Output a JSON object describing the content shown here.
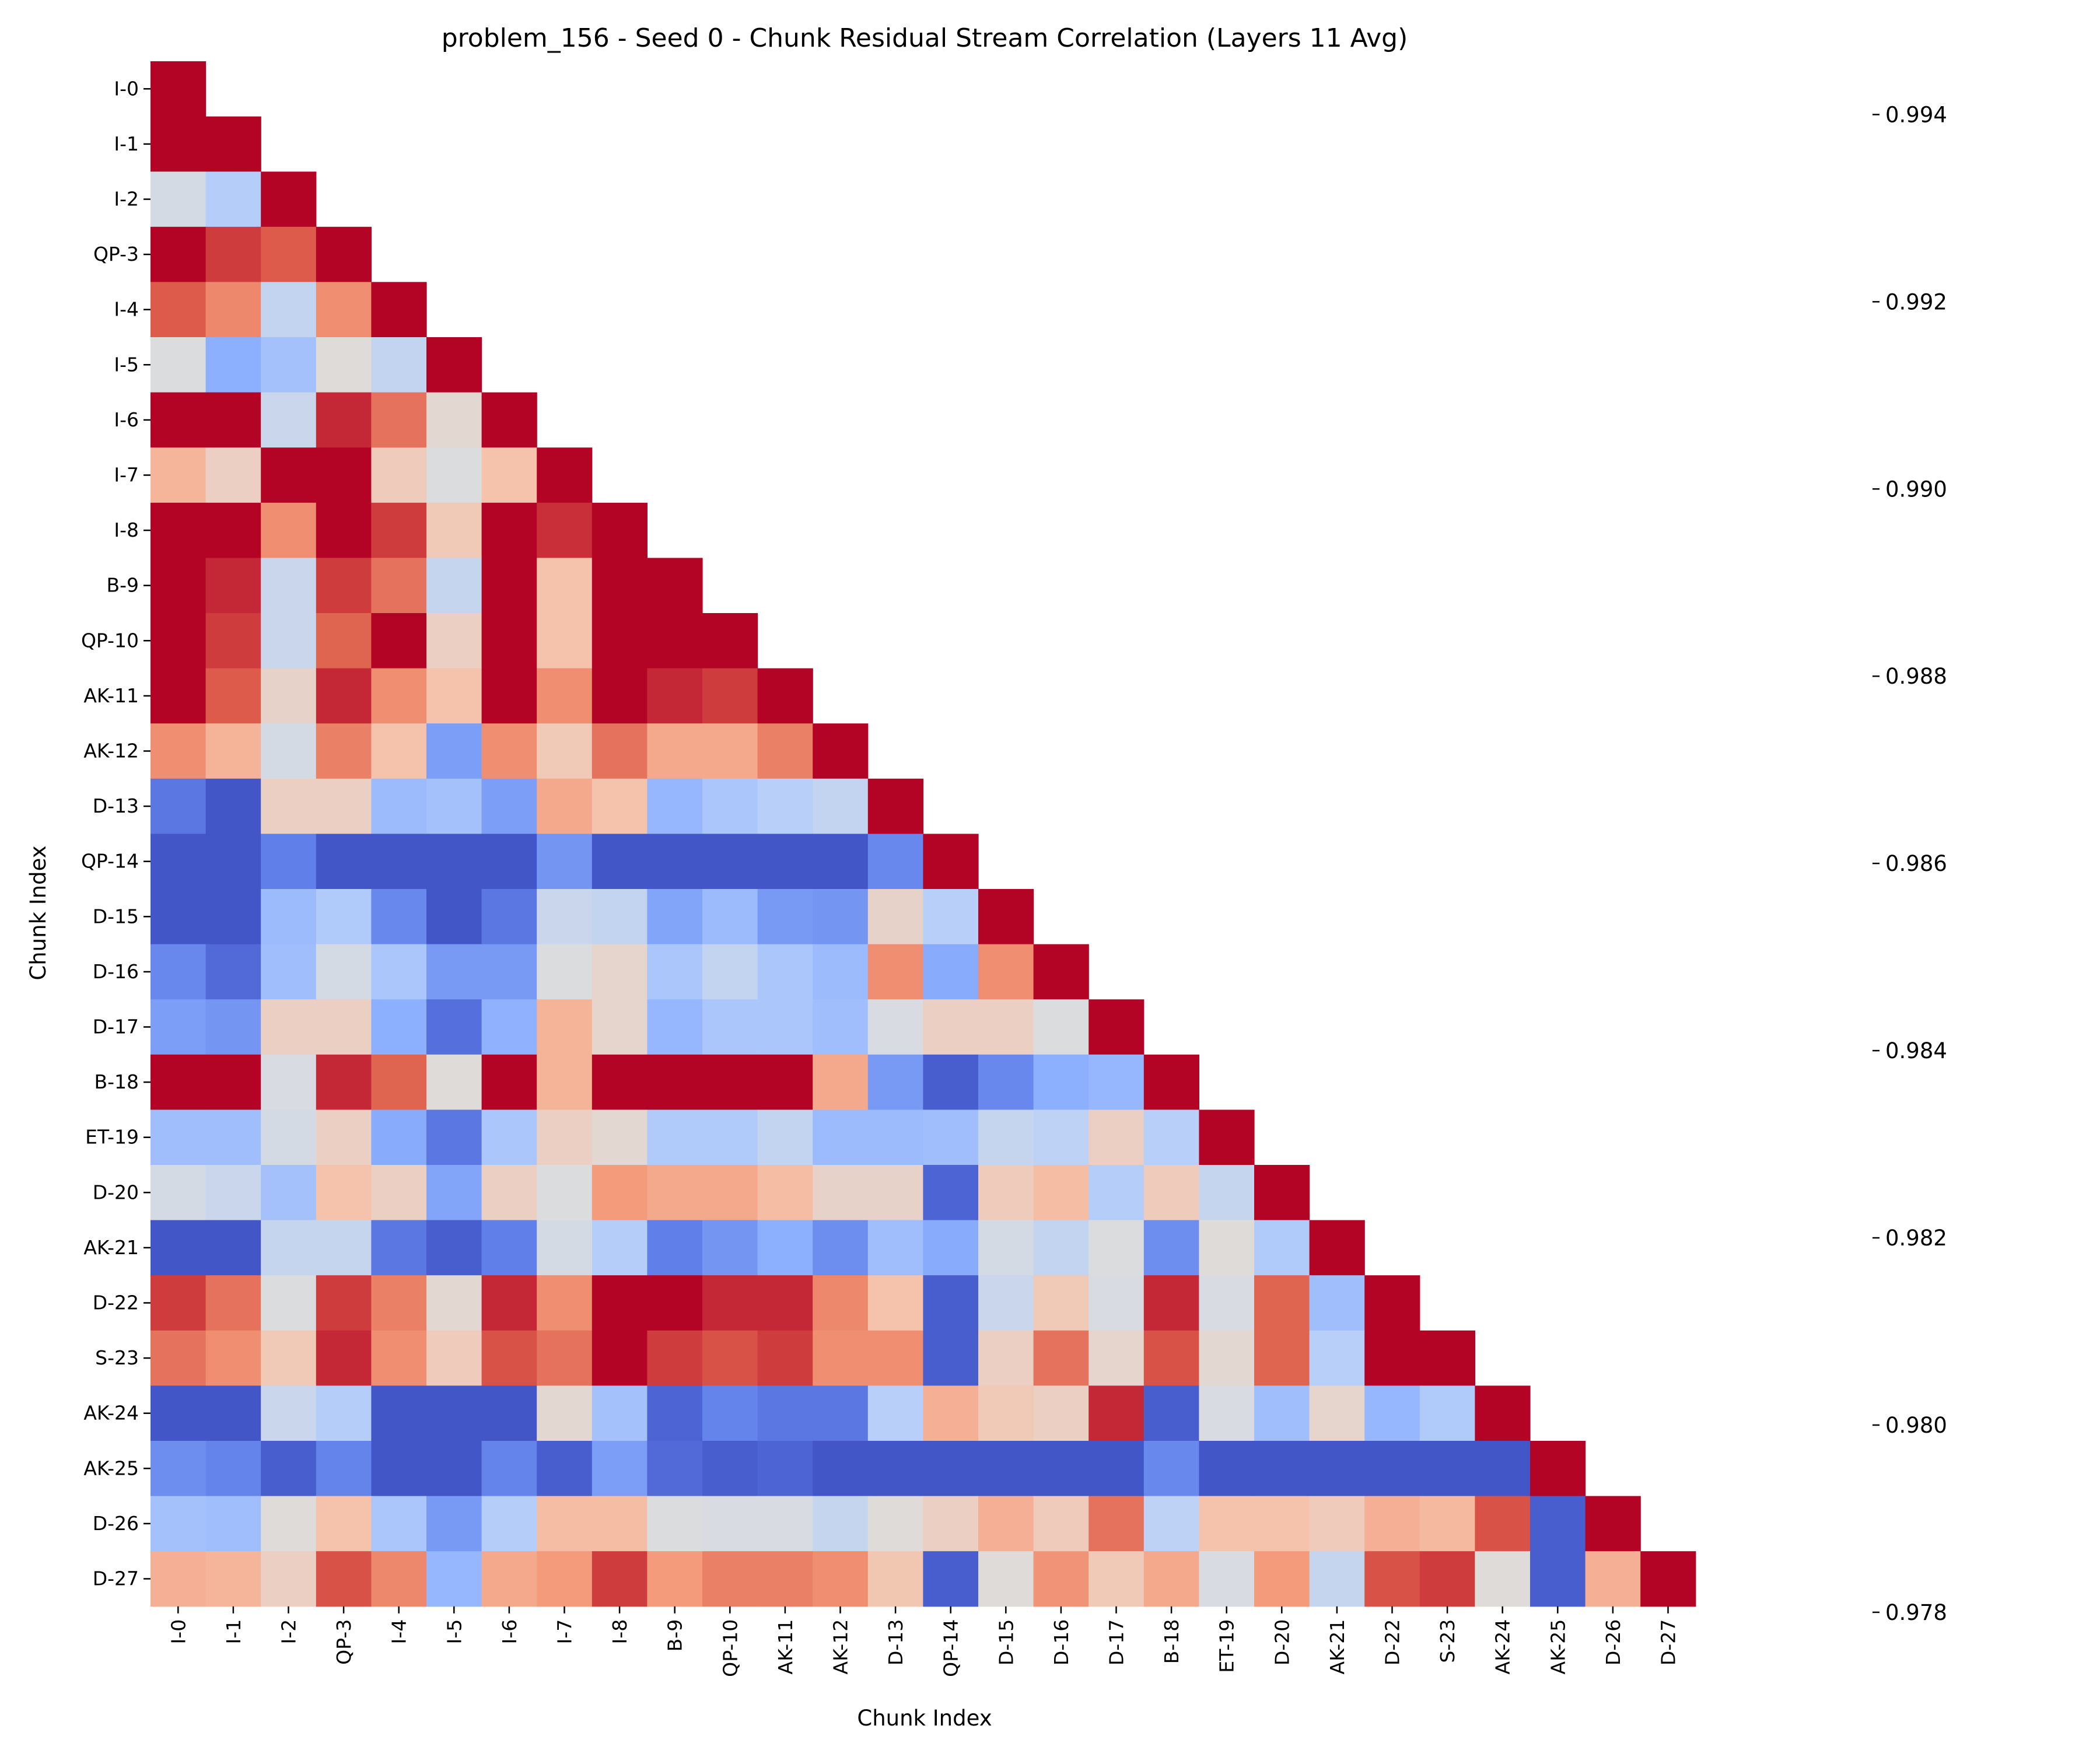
{
  "chart_data": {
    "type": "heatmap",
    "title": "problem_156 - Seed 0 - Chunk Residual Stream Correlation (Layers 11 Avg)",
    "xlabel": "Chunk Index",
    "ylabel": "Chunk Index",
    "mask": "lower-triangle",
    "colormap": "coolwarm",
    "vmin": 0.9778,
    "vmax": 0.9948,
    "labels": [
      "I-0",
      "I-1",
      "I-2",
      "QP-3",
      "I-4",
      "I-5",
      "I-6",
      "I-7",
      "I-8",
      "B-9",
      "QP-10",
      "AK-11",
      "AK-12",
      "D-13",
      "QP-14",
      "D-15",
      "D-16",
      "D-17",
      "B-18",
      "ET-19",
      "D-20",
      "AK-21",
      "D-22",
      "S-23",
      "AK-24",
      "AK-25",
      "D-26",
      "D-27"
    ],
    "colorbar_ticks": [
      "0.978",
      "0.980",
      "0.982",
      "0.984",
      "0.986",
      "0.988",
      "0.990",
      "0.992",
      "0.994"
    ],
    "colorbar_tick_values": [
      0.978,
      0.98,
      0.982,
      0.984,
      0.986,
      0.988,
      0.99,
      0.992,
      0.994
    ],
    "values": [
      [
        0.995
      ],
      [
        0.995,
        0.995
      ],
      [
        0.9858,
        0.984,
        0.995
      ],
      [
        0.995,
        0.9935,
        0.9928,
        0.995
      ],
      [
        0.9928,
        0.9912,
        0.9848,
        0.991,
        0.995
      ],
      [
        0.9862,
        0.982,
        0.9832,
        0.9865,
        0.9848,
        0.995
      ],
      [
        0.995,
        0.995,
        0.9852,
        0.994,
        0.992,
        0.9868,
        0.995
      ],
      [
        0.9892,
        0.9875,
        0.995,
        0.995,
        0.9878,
        0.9862,
        0.9885,
        0.995
      ],
      [
        0.995,
        0.995,
        0.991,
        0.995,
        0.9935,
        0.988,
        0.995,
        0.9938,
        0.995
      ],
      [
        0.995,
        0.994,
        0.9852,
        0.9935,
        0.992,
        0.985,
        0.995,
        0.9885,
        0.995,
        0.995
      ],
      [
        0.995,
        0.9935,
        0.9852,
        0.9925,
        0.995,
        0.9875,
        0.995,
        0.9885,
        0.995,
        0.995,
        0.995
      ],
      [
        0.995,
        0.9928,
        0.9872,
        0.994,
        0.991,
        0.9885,
        0.995,
        0.991,
        0.995,
        0.994,
        0.9935,
        0.995
      ],
      [
        0.991,
        0.9893,
        0.9858,
        0.9915,
        0.9885,
        0.9812,
        0.991,
        0.988,
        0.992,
        0.9898,
        0.9898,
        0.9915,
        0.995
      ],
      [
        0.9795,
        0.9782,
        0.9875,
        0.9875,
        0.9828,
        0.9832,
        0.9812,
        0.9898,
        0.9885,
        0.9825,
        0.9835,
        0.9842,
        0.9848,
        0.995
      ],
      [
        0.9782,
        0.9782,
        0.9798,
        0.9782,
        0.9782,
        0.9782,
        0.9782,
        0.9808,
        0.9782,
        0.9782,
        0.9782,
        0.9782,
        0.9782,
        0.9802,
        0.995
      ],
      [
        0.9782,
        0.9782,
        0.9828,
        0.9838,
        0.9802,
        0.9782,
        0.9795,
        0.9852,
        0.9848,
        0.9815,
        0.9828,
        0.981,
        0.9808,
        0.9872,
        0.9842,
        0.995
      ],
      [
        0.9802,
        0.979,
        0.983,
        0.9858,
        0.9835,
        0.981,
        0.981,
        0.9862,
        0.987,
        0.9835,
        0.9848,
        0.9835,
        0.9828,
        0.991,
        0.9818,
        0.991,
        0.995
      ],
      [
        0.9812,
        0.9808,
        0.9875,
        0.9875,
        0.982,
        0.9792,
        0.9822,
        0.9893,
        0.987,
        0.9825,
        0.9835,
        0.9835,
        0.983,
        0.986,
        0.9875,
        0.9875,
        0.9862,
        0.995
      ],
      [
        0.995,
        0.995,
        0.986,
        0.994,
        0.9925,
        0.9865,
        0.995,
        0.9893,
        0.995,
        0.995,
        0.995,
        0.995,
        0.9898,
        0.981,
        0.9785,
        0.9802,
        0.982,
        0.9825,
        0.995
      ],
      [
        0.983,
        0.983,
        0.9858,
        0.9875,
        0.9818,
        0.9795,
        0.9835,
        0.9875,
        0.9868,
        0.9838,
        0.9838,
        0.9848,
        0.9828,
        0.9828,
        0.983,
        0.985,
        0.9845,
        0.9875,
        0.9842,
        0.995
      ],
      [
        0.9858,
        0.9852,
        0.9832,
        0.9885,
        0.9875,
        0.9815,
        0.9875,
        0.9862,
        0.9905,
        0.9898,
        0.9898,
        0.9888,
        0.9872,
        0.9872,
        0.9788,
        0.9878,
        0.9888,
        0.984,
        0.9878,
        0.985,
        0.995
      ],
      [
        0.9782,
        0.9782,
        0.985,
        0.985,
        0.9795,
        0.9785,
        0.9798,
        0.9858,
        0.984,
        0.9798,
        0.9808,
        0.982,
        0.9805,
        0.983,
        0.9818,
        0.9858,
        0.9848,
        0.9862,
        0.9805,
        0.9865,
        0.9838,
        0.995
      ],
      [
        0.9935,
        0.992,
        0.9862,
        0.9935,
        0.9915,
        0.9868,
        0.994,
        0.991,
        0.995,
        0.995,
        0.994,
        0.994,
        0.9912,
        0.9885,
        0.9785,
        0.9852,
        0.988,
        0.986,
        0.994,
        0.986,
        0.9925,
        0.983,
        0.995
      ],
      [
        0.992,
        0.991,
        0.988,
        0.994,
        0.991,
        0.9878,
        0.993,
        0.992,
        0.995,
        0.9935,
        0.993,
        0.9935,
        0.991,
        0.991,
        0.9785,
        0.9875,
        0.992,
        0.987,
        0.993,
        0.9868,
        0.9925,
        0.9842,
        0.995,
        0.995
      ],
      [
        0.9782,
        0.9782,
        0.9852,
        0.984,
        0.9782,
        0.9782,
        0.9782,
        0.9868,
        0.9832,
        0.9788,
        0.98,
        0.9795,
        0.9795,
        0.9842,
        0.9895,
        0.988,
        0.9875,
        0.994,
        0.9785,
        0.986,
        0.983,
        0.987,
        0.9825,
        0.9838,
        0.995
      ],
      [
        0.9805,
        0.98,
        0.9785,
        0.98,
        0.9782,
        0.9782,
        0.98,
        0.9785,
        0.9812,
        0.979,
        0.9785,
        0.9788,
        0.9782,
        0.9782,
        0.9782,
        0.9782,
        0.9782,
        0.9782,
        0.9802,
        0.9782,
        0.9782,
        0.9782,
        0.9782,
        0.9782,
        0.9782,
        0.995
      ],
      [
        0.9832,
        0.983,
        0.9865,
        0.9885,
        0.9835,
        0.981,
        0.984,
        0.9888,
        0.9888,
        0.9862,
        0.986,
        0.986,
        0.985,
        0.9865,
        0.9875,
        0.9895,
        0.9878,
        0.992,
        0.9845,
        0.9885,
        0.9885,
        0.9878,
        0.9895,
        0.989,
        0.993,
        0.9785,
        0.995
      ],
      [
        0.9895,
        0.9892,
        0.9875,
        0.993,
        0.9912,
        0.9825,
        0.9898,
        0.9905,
        0.9935,
        0.9905,
        0.9915,
        0.9915,
        0.991,
        0.9882,
        0.9785,
        0.9865,
        0.9908,
        0.988,
        0.9898,
        0.986,
        0.9905,
        0.985,
        0.993,
        0.9935,
        0.9865,
        0.9785,
        0.9895,
        0.995
      ]
    ]
  }
}
